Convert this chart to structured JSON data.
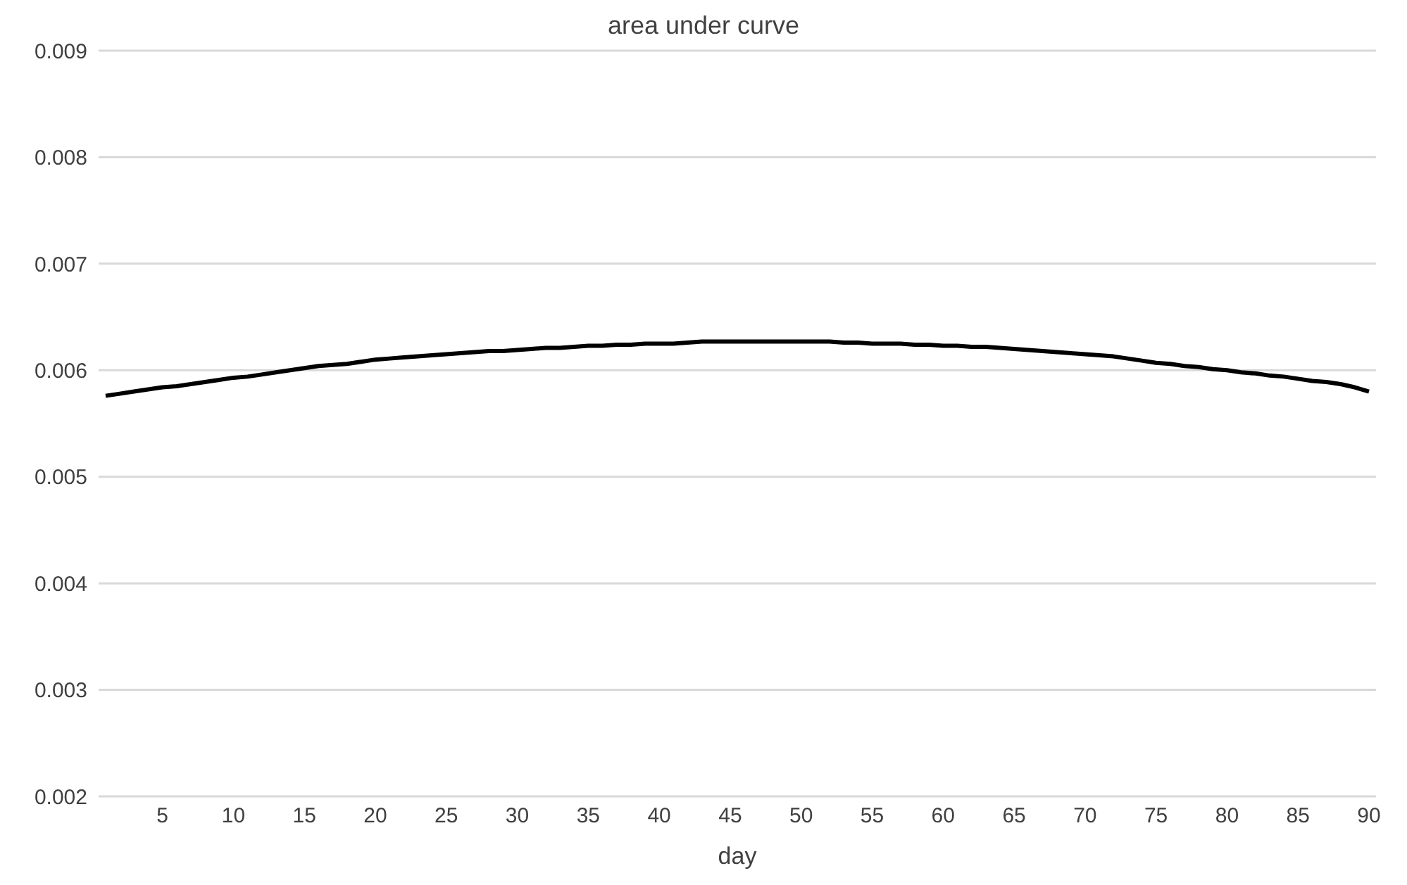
{
  "chart_data": {
    "type": "line",
    "title": "area under curve",
    "xlabel": "day",
    "categories": [
      null,
      null,
      null,
      null,
      "5",
      null,
      null,
      null,
      null,
      "10",
      null,
      null,
      null,
      null,
      "15",
      null,
      null,
      null,
      null,
      "20",
      null,
      null,
      null,
      null,
      "25",
      null,
      null,
      null,
      null,
      "30",
      null,
      null,
      null,
      null,
      "35",
      null,
      null,
      null,
      null,
      "40",
      null,
      null,
      null,
      null,
      "45",
      null,
      null,
      null,
      null,
      "50",
      null,
      null,
      null,
      null,
      "55",
      null,
      null,
      null,
      null,
      "60",
      null,
      null,
      null,
      null,
      "65",
      null,
      null,
      null,
      null,
      "70",
      null,
      null,
      null,
      null,
      "75",
      null,
      null,
      null,
      null,
      "80",
      null,
      null,
      null,
      null,
      "85",
      null,
      null,
      null,
      null,
      "90"
    ],
    "series": [
      {
        "color": "#000000",
        "values": [
          0.00576,
          0.00578,
          0.0058,
          0.00582,
          0.00584,
          0.00585,
          0.00587,
          0.00589,
          0.00591,
          0.00593,
          0.00594,
          0.00596,
          0.00598,
          0.006,
          0.00602,
          0.00604,
          0.00605,
          0.00606,
          0.00608,
          0.0061,
          0.00611,
          0.00612,
          0.00613,
          0.00614,
          0.00615,
          0.00616,
          0.00617,
          0.00618,
          0.00618,
          0.00619,
          0.0062,
          0.00621,
          0.00621,
          0.00622,
          0.00623,
          0.00623,
          0.00624,
          0.00624,
          0.00625,
          0.00625,
          0.00625,
          0.00626,
          0.00627,
          0.00627,
          0.00627,
          0.00627,
          0.00627,
          0.00627,
          0.00627,
          0.00627,
          0.00627,
          0.00627,
          0.00626,
          0.00626,
          0.00625,
          0.00625,
          0.00625,
          0.00624,
          0.00624,
          0.00623,
          0.00623,
          0.00622,
          0.00622,
          0.00621,
          0.0062,
          0.00619,
          0.00618,
          0.00617,
          0.00616,
          0.00615,
          0.00614,
          0.00613,
          0.00611,
          0.00609,
          0.00607,
          0.00606,
          0.00604,
          0.00603,
          0.00601,
          0.006,
          0.00598,
          0.00597,
          0.00595,
          0.00594,
          0.00592,
          0.0059,
          0.00589,
          0.00587,
          0.00584,
          0.0058
        ]
      }
    ],
    "ylim": [
      0.002,
      0.009
    ],
    "yticks": [
      0.002,
      0.003,
      0.004,
      0.005,
      0.006,
      0.007,
      0.008,
      0.009
    ],
    "grid": "y",
    "legend": false,
    "marker": "none",
    "line_style": "solid"
  }
}
